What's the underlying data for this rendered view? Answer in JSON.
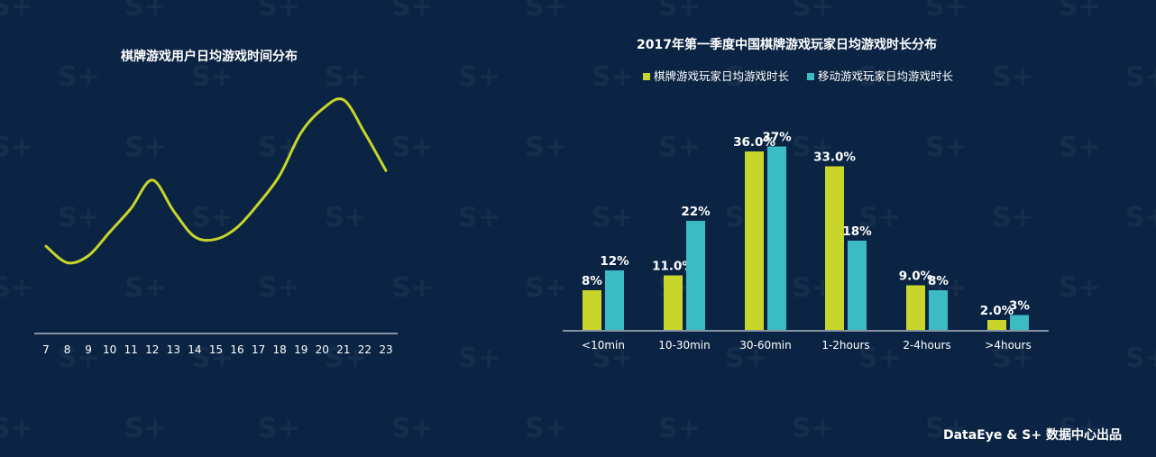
{
  "footer": {
    "credit": "DataEye & S+ 数据中心出品"
  },
  "watermark": {
    "text": "S+"
  },
  "colors": {
    "background": "#0b2443",
    "line": "#c8d52a",
    "series_a": "#c8d52a",
    "series_b": "#3bbcc4",
    "axis": "#ffffff"
  },
  "chart_data": [
    {
      "type": "line",
      "title": "棋牌游戏用户日均游戏时间分布",
      "x": [
        7,
        8,
        9,
        10,
        11,
        12,
        13,
        14,
        15,
        16,
        17,
        18,
        19,
        20,
        21,
        22,
        23
      ],
      "values": [
        32,
        25,
        28,
        38,
        48,
        60,
        47,
        36,
        35,
        40,
        50,
        62,
        80,
        90,
        94,
        80,
        64
      ],
      "ylim": [
        0,
        100
      ],
      "xlabel": "",
      "ylabel": "",
      "grid": false
    },
    {
      "type": "bar",
      "title": "2017年第一季度中国棋牌游戏玩家日均游戏时长分布",
      "categories": [
        "<10min",
        "10-30min",
        "30-60min",
        "1-2hours",
        "2-4hours",
        ">4hours"
      ],
      "series": [
        {
          "name": "棋牌游戏玩家日均游戏时长",
          "values": [
            8,
            11,
            36,
            33,
            9,
            2
          ],
          "labels": [
            "8%",
            "11.0%",
            "36.0%",
            "33.0%",
            "9.0%",
            "2.0%"
          ]
        },
        {
          "name": "移动游戏玩家日均游戏时长",
          "values": [
            12,
            22,
            37,
            18,
            8,
            3
          ],
          "labels": [
            "12%",
            "22%",
            "37%",
            "18%",
            "8%",
            "3%"
          ]
        }
      ],
      "ylim": [
        0,
        40
      ],
      "legend": "top",
      "grid": false
    }
  ]
}
